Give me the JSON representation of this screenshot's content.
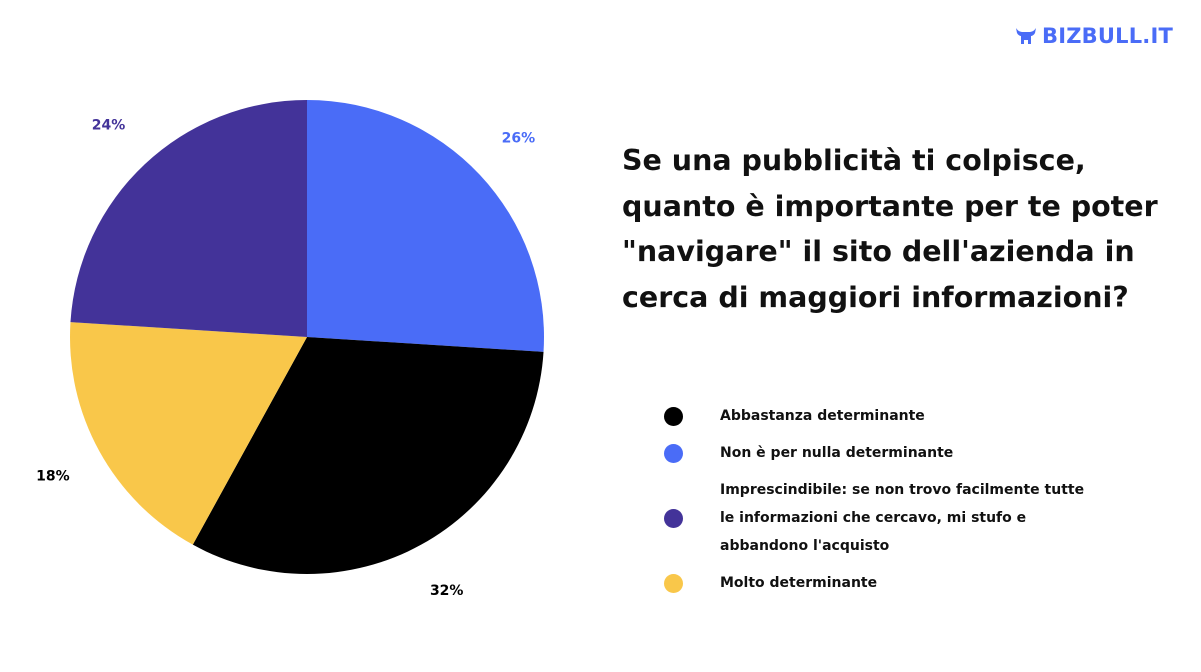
{
  "brand": {
    "name": "BIZBULL.IT",
    "color": "#4a6cf7"
  },
  "chart_data": {
    "type": "pie",
    "title": "Se una pubblicità ti colpisce, quanto è importante per te poter \"navigare\" il sito dell'azienda in cerca di maggiori informazioni?",
    "title_lines": [
      "Se una pubblicità ti colpisce,",
      "quanto è importante per te poter",
      "\"navigare\" il sito dell'azienda in",
      "cerca di maggiori informazioni?"
    ],
    "slices": [
      {
        "name": "Non è per nulla determinante",
        "value": 26,
        "label": "26%",
        "color": "#4a6cf7",
        "label_color": "#4a6cf7"
      },
      {
        "name": "Abbastanza determinante",
        "value": 32,
        "label": "32%",
        "color": "#000000",
        "label_color": "#000000"
      },
      {
        "name": "Molto determinante",
        "value": 18,
        "label": "18%",
        "color": "#f9c74a",
        "label_color": "#000000"
      },
      {
        "name": "Imprescindibile: se non trovo facilmente tutte le informazioni che cercavo, mi stufo e abbandono l'acquisto",
        "value": 24,
        "label": "24%",
        "color": "#433399",
        "label_color": "#433399"
      }
    ],
    "legend_position": "bottom-right",
    "legend": [
      {
        "color": "#000000",
        "lines": [
          "Abbastanza determinante"
        ]
      },
      {
        "color": "#4a6cf7",
        "lines": [
          "Non è per nulla determinante"
        ]
      },
      {
        "color": "#433399",
        "lines": [
          "Imprescindibile: se non trovo facilmente tutte",
          "le informazioni che cercavo, mi stufo e",
          "abbandono l'acquisto"
        ]
      },
      {
        "color": "#f9c74a",
        "lines": [
          "Molto determinante"
        ]
      }
    ]
  }
}
